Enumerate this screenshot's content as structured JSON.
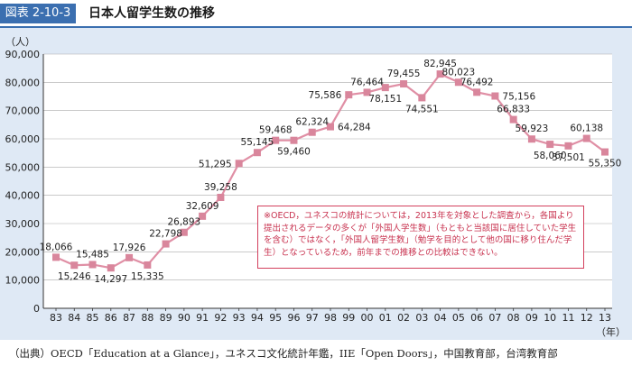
{
  "header": {
    "figure_tag": "図表 2-10-3",
    "title": "日本人留学生数の推移"
  },
  "chart_data": {
    "type": "line",
    "y_unit_label": "（人）",
    "x_unit_label": "（年）",
    "ylim": [
      0,
      90000
    ],
    "yticks": [
      0,
      10000,
      20000,
      30000,
      40000,
      50000,
      60000,
      70000,
      80000,
      90000
    ],
    "ytick_labels": [
      "0",
      "10,000",
      "20,000",
      "30,000",
      "40,000",
      "50,000",
      "60,000",
      "70,000",
      "80,000",
      "90,000"
    ],
    "grid": true,
    "categories": [
      "83",
      "84",
      "85",
      "86",
      "87",
      "88",
      "89",
      "90",
      "91",
      "92",
      "93",
      "94",
      "95",
      "96",
      "97",
      "98",
      "99",
      "00",
      "01",
      "02",
      "03",
      "04",
      "05",
      "06",
      "07",
      "08",
      "09",
      "10",
      "11",
      "12",
      "13"
    ],
    "values": [
      18066,
      15246,
      15485,
      14297,
      17926,
      15335,
      22798,
      26893,
      32609,
      39258,
      51295,
      55145,
      59468,
      59460,
      62324,
      64284,
      75586,
      76464,
      78151,
      79455,
      74551,
      82945,
      80023,
      76492,
      75156,
      66833,
      59923,
      58060,
      57501,
      60138,
      55350
    ],
    "value_labels": [
      "18,066",
      "15,246",
      "15,485",
      "14,297",
      "17,926",
      "15,335",
      "22,798",
      "26,893",
      "32,609",
      "39,258",
      "51,295",
      "55,145",
      "59,468",
      "59,460",
      "62,324",
      "64,284",
      "75,586",
      "76,464",
      "78,151",
      "79,455",
      "74,551",
      "82,945",
      "80,023",
      "76,492",
      "75,156",
      "66,833",
      "59,923",
      "58,060",
      "57,501",
      "60,138",
      "55,350"
    ],
    "label_positions": [
      "above",
      "below",
      "above",
      "below",
      "above",
      "below",
      "above",
      "above",
      "above",
      "above",
      "left",
      "above",
      "above",
      "below",
      "above",
      "right",
      "left",
      "above",
      "below",
      "above",
      "below",
      "above",
      "above",
      "above",
      "right",
      "above",
      "above",
      "below",
      "below",
      "above",
      "below"
    ],
    "line_color": "#e08fa5",
    "marker_color": "#d9869c"
  },
  "note": {
    "text": "※OECD，ユネスコの統計については，2013年を対象とした調査から，各国より提出されるデータの多くが「外国人学生数」（もともと当該国に居住していた学生を含む）ではなく，「外国人留学生数」（勉学を目的として他の国に移り住んだ学生）となっているため，前年までの推移との比較はできない。"
  },
  "source": {
    "text": "（出典）OECD「Education at a Glance」，ユネスコ文化統計年鑑，IIE「Open Doors」，中国教育部，台湾教育部"
  }
}
